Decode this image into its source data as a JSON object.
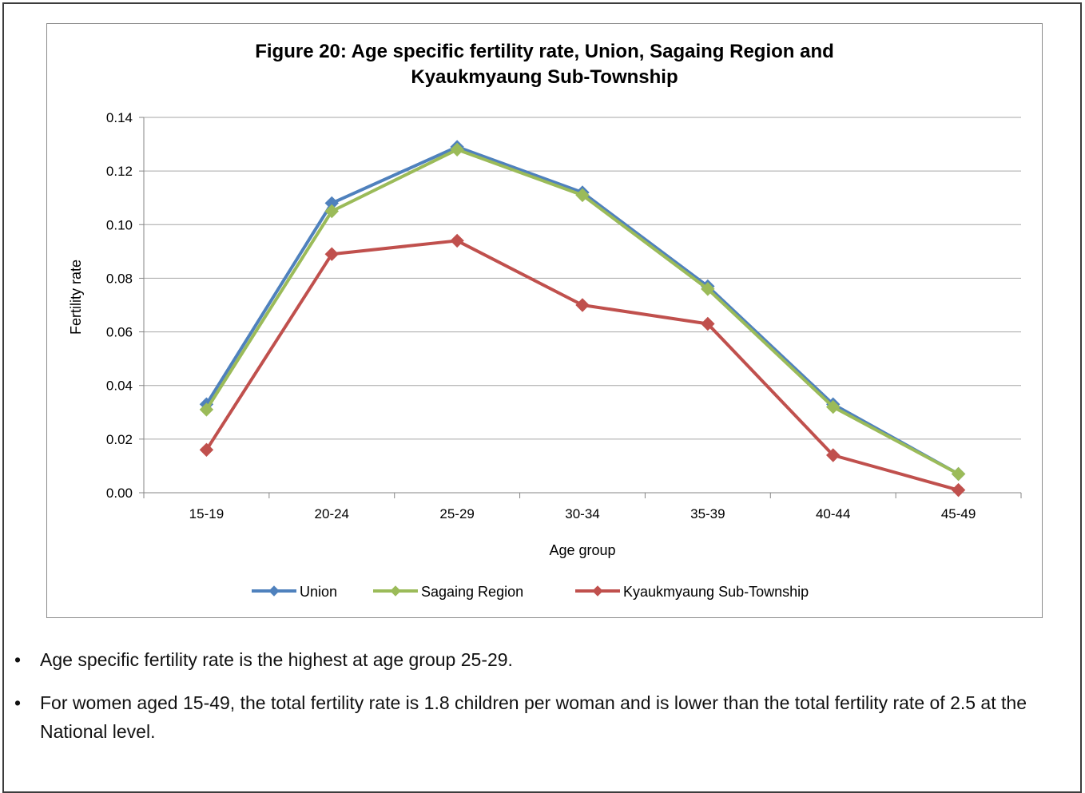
{
  "chart_data": {
    "type": "line",
    "title_line1": "Figure 20: Age specific fertility rate, Union, Sagaing Region and",
    "title_line2": "Kyaukmyaung Sub-Township",
    "xlabel": "Age group",
    "ylabel": "Fertility rate",
    "categories": [
      "15-19",
      "20-24",
      "25-29",
      "30-34",
      "35-39",
      "40-44",
      "45-49"
    ],
    "ylim": [
      0,
      0.14
    ],
    "yticks": [
      "0.00",
      "0.02",
      "0.04",
      "0.06",
      "0.08",
      "0.10",
      "0.12",
      "0.14"
    ],
    "grid": true,
    "legend_position": "bottom",
    "series": [
      {
        "name": "Union",
        "color": "#4f81bd",
        "values": [
          0.033,
          0.108,
          0.129,
          0.112,
          0.077,
          0.033,
          0.007
        ]
      },
      {
        "name": "Sagaing Region",
        "color": "#9bbb59",
        "values": [
          0.031,
          0.105,
          0.128,
          0.111,
          0.076,
          0.032,
          0.007
        ]
      },
      {
        "name": "Kyaukmyaung Sub-Township",
        "color": "#c0504d",
        "values": [
          0.016,
          0.089,
          0.094,
          0.07,
          0.063,
          0.014,
          0.001
        ]
      }
    ]
  },
  "bullets": [
    {
      "symbol": "•",
      "text": "Age specific fertility rate is the highest at age group 25-29."
    },
    {
      "symbol": "•",
      "text": "For women aged 15-49, the total fertility rate is 1.8 children per woman and is lower than the total fertility rate of 2.5 at the National level."
    }
  ]
}
